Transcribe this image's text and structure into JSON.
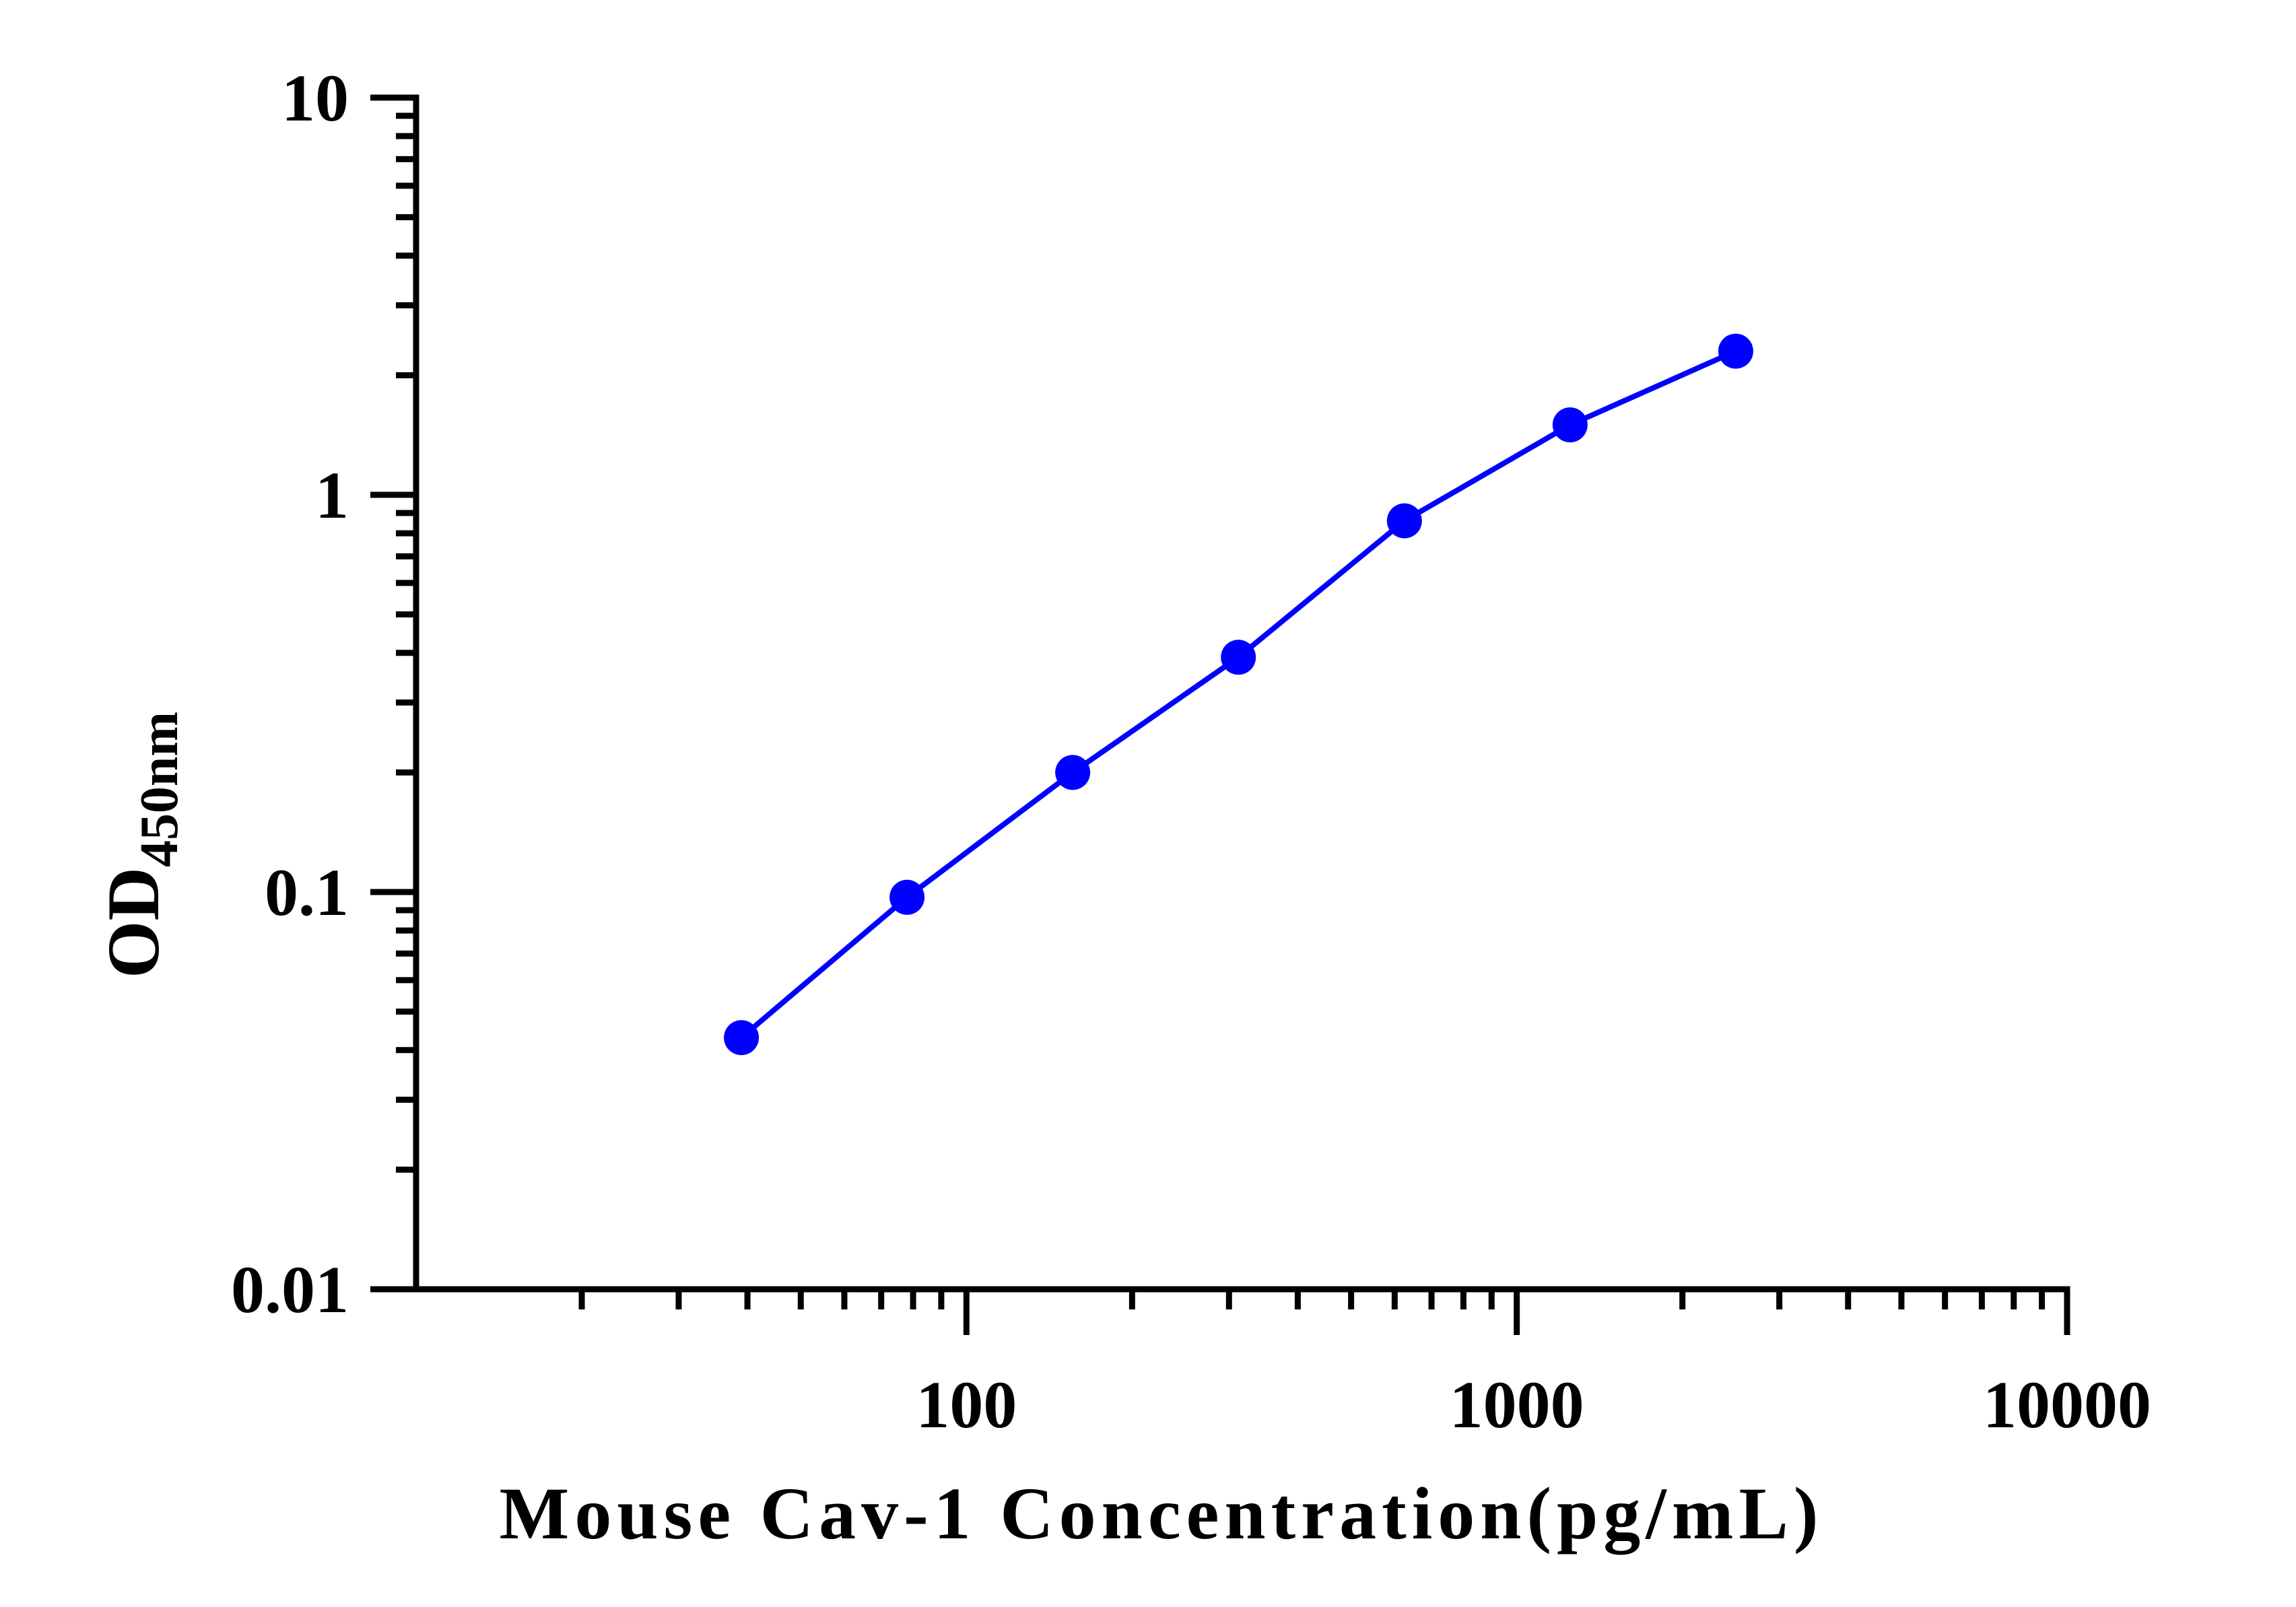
{
  "chart_data": {
    "type": "line",
    "x_scale": "log",
    "y_scale": "log",
    "xlabel": "Mouse Cav-1 Concentration(pg/mL)",
    "ylabel_main": "OD",
    "ylabel_sub": "450nm",
    "xlim": [
      10,
      10000
    ],
    "ylim": [
      0.01,
      10
    ],
    "x_tick_labels": [
      "100",
      "1000",
      "10000"
    ],
    "x_tick_values": [
      100,
      1000,
      10000
    ],
    "y_tick_labels": [
      "0.01",
      "0.1",
      "1",
      "10"
    ],
    "y_tick_values": [
      0.01,
      0.1,
      1,
      10
    ],
    "grid": false,
    "series": [
      {
        "color": "#0000ff",
        "x": [
          39,
          78,
          156,
          312,
          625,
          1250,
          2500
        ],
        "y": [
          0.043,
          0.097,
          0.2,
          0.39,
          0.86,
          1.5,
          2.3
        ]
      }
    ]
  }
}
